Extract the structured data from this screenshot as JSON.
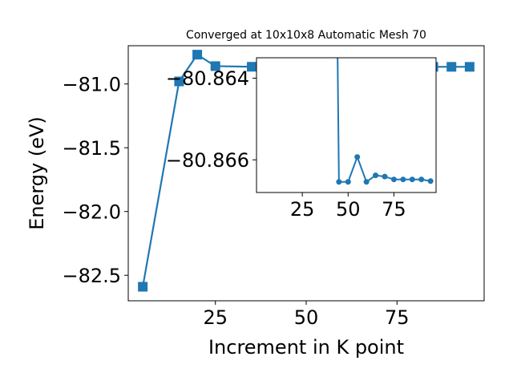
{
  "chart_data": [
    {
      "type": "line",
      "title": "Converged at 10x10x8 Automatic Mesh 70",
      "xlabel": "Increment in K point",
      "ylabel": "Energy (eV)",
      "xlim": [
        1,
        99
      ],
      "ylim": [
        -82.7,
        -80.7
      ],
      "xticks": [
        25,
        50,
        75
      ],
      "xtick_labels": [
        "25",
        "50",
        "75"
      ],
      "yticks": [
        -82.5,
        -82.0,
        -81.5,
        -81.0
      ],
      "ytick_labels": [
        "−82.5",
        "−82.0",
        "−81.5",
        "−81.0"
      ],
      "grid": false,
      "marker": "square",
      "color": "#1f77b4",
      "series": [
        {
          "x": [
            5,
            15,
            20,
            25,
            35,
            45,
            50,
            55,
            60,
            65,
            70,
            75,
            80,
            85,
            90,
            95
          ],
          "y": [
            -82.59,
            -80.98,
            -80.77,
            -80.86,
            -80.865,
            -80.8656,
            -80.8656,
            -80.8654,
            -80.8656,
            -80.8655,
            -80.8655,
            -80.8656,
            -80.8656,
            -80.8656,
            -80.8656,
            -80.8656
          ]
        }
      ]
    },
    {
      "type": "line",
      "title": "",
      "inset": true,
      "xlim": [
        0,
        98
      ],
      "ylim": [
        -80.8668,
        -80.8635
      ],
      "xticks": [
        25,
        50,
        75
      ],
      "xtick_labels": [
        "25",
        "50",
        "75"
      ],
      "yticks": [
        -80.866,
        -80.864
      ],
      "ytick_labels": [
        "−80.866",
        "−80.864"
      ],
      "grid": false,
      "marker": "circle",
      "color": "#1f77b4",
      "series": [
        {
          "x": [
            44,
            45,
            50,
            55,
            60,
            65,
            70,
            75,
            80,
            85,
            90,
            95
          ],
          "y": [
            -80.8624,
            -80.86654,
            -80.86654,
            -80.86593,
            -80.86654,
            -80.86638,
            -80.86641,
            -80.86648,
            -80.86648,
            -80.86648,
            -80.86648,
            -80.86652
          ]
        }
      ]
    }
  ]
}
